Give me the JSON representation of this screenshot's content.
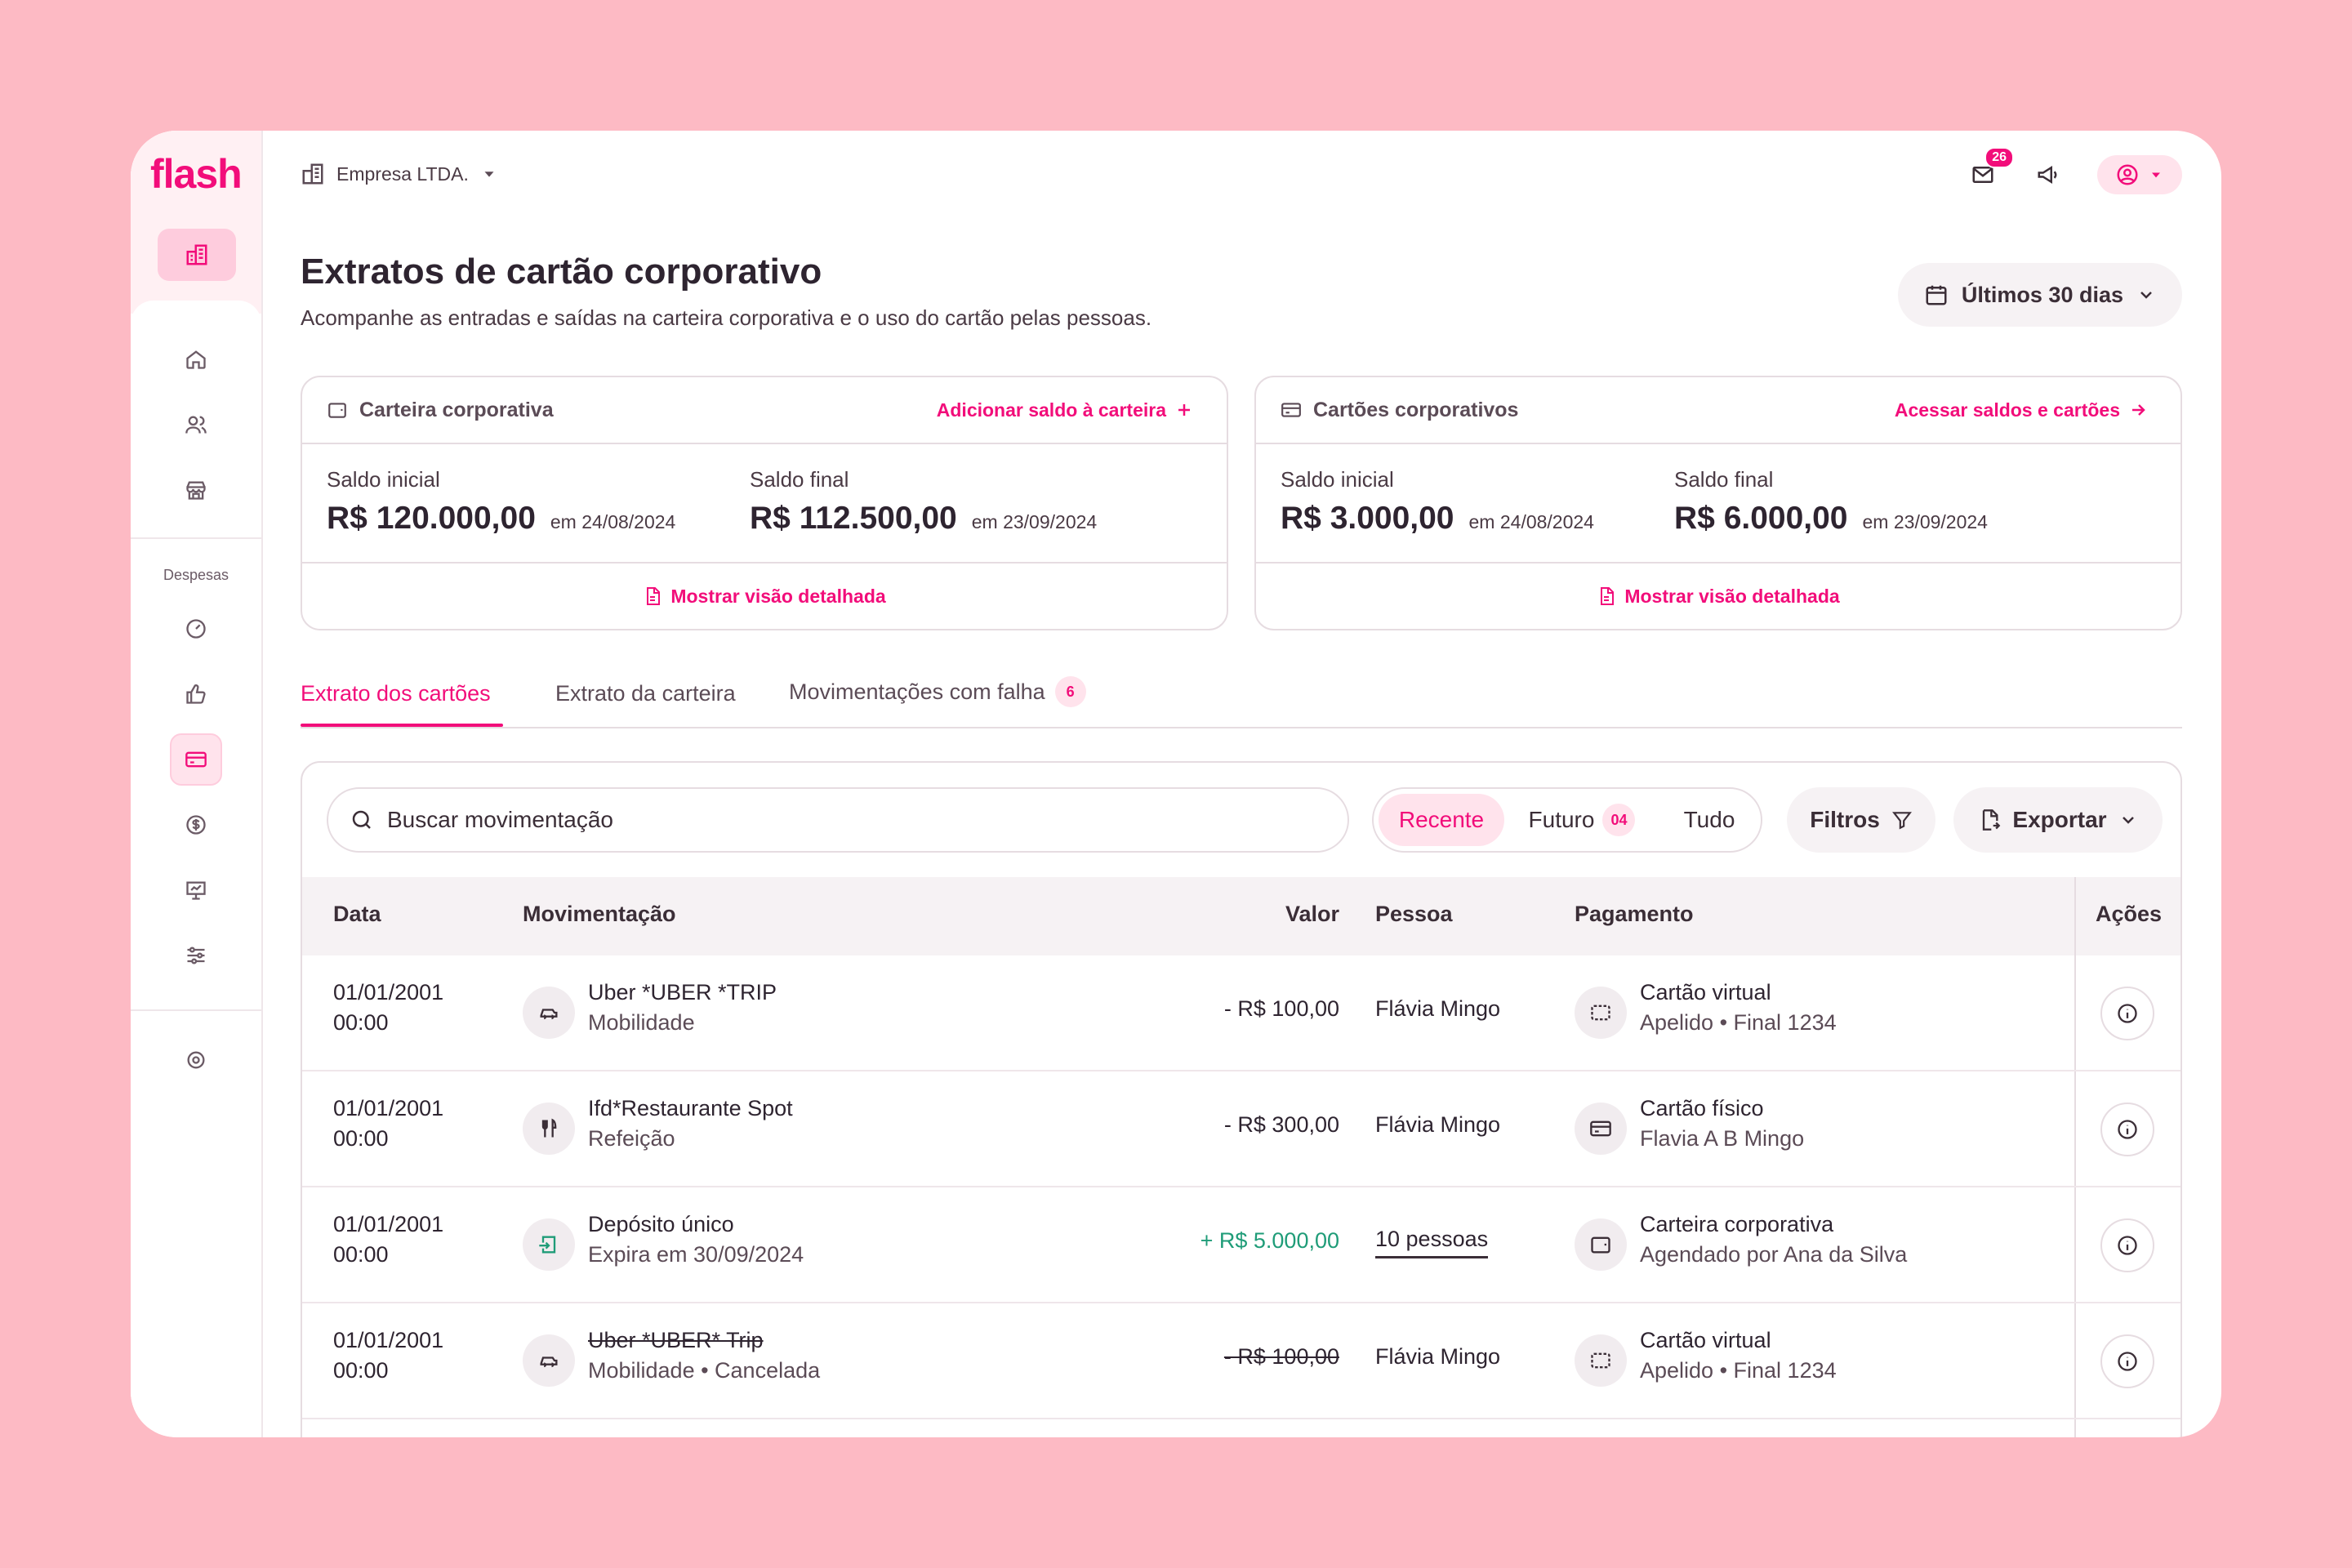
{
  "app": {
    "logo": "flash",
    "company": "Empresa LTDA."
  },
  "header": {
    "mail_count": "26"
  },
  "sidebar": {
    "section_label": "Despesas"
  },
  "page": {
    "title": "Extratos de cartão corporativo",
    "subtitle": "Acompanhe as entradas e saídas na carteira corporativa e o uso do cartão pelas pessoas.",
    "date_filter": "Últimos 30 dias"
  },
  "cards": [
    {
      "title": "Carteira corporativa",
      "action": "Adicionar saldo à carteira",
      "initial_label": "Saldo inicial",
      "initial_value": "R$ 120.000,00",
      "initial_date": "em 24/08/2024",
      "final_label": "Saldo final",
      "final_value": "R$ 112.500,00",
      "final_date": "em 23/09/2024",
      "footer": "Mostrar visão detalhada"
    },
    {
      "title": "Cartões corporativos",
      "action": "Acessar saldos e cartões",
      "initial_label": "Saldo inicial",
      "initial_value": "R$ 3.000,00",
      "initial_date": "em 24/08/2024",
      "final_label": "Saldo final",
      "final_value": "R$ 6.000,00",
      "final_date": "em 23/09/2024",
      "footer": "Mostrar visão detalhada"
    }
  ],
  "tabs": [
    {
      "label": "Extrato dos cartões"
    },
    {
      "label": "Extrato da carteira"
    },
    {
      "label": "Movimentações com falha",
      "badge": "6"
    }
  ],
  "toolbar": {
    "search_placeholder": "Buscar movimentação",
    "segments": [
      {
        "label": "Recente"
      },
      {
        "label": "Futuro",
        "badge": "04"
      },
      {
        "label": "Tudo"
      }
    ],
    "filters_label": "Filtros",
    "export_label": "Exportar"
  },
  "table": {
    "columns": [
      "Data",
      "Movimentação",
      "Valor",
      "Pessoa",
      "Pagamento",
      "Ações"
    ],
    "rows": [
      {
        "date": "01/01/2001",
        "time": "00:00",
        "title": "Uber *UBER *TRIP",
        "subtitle": "Mobilidade",
        "icon": "car-icon",
        "value": "- R$ 100,00",
        "person": "Flávia Mingo",
        "pay_title": "Cartão virtual",
        "pay_sub": "Apelido • Final 1234",
        "pay_icon": "virtual-card-icon"
      },
      {
        "date": "01/01/2001",
        "time": "00:00",
        "title": "Ifd*Restaurante Spot",
        "subtitle": "Refeição",
        "icon": "cutlery-icon",
        "value": "- R$ 300,00",
        "person": "Flávia Mingo",
        "pay_title": "Cartão físico",
        "pay_sub": "Flavia A B Mingo",
        "pay_icon": "card-icon"
      },
      {
        "date": "01/01/2001",
        "time": "00:00",
        "title": "Depósito único",
        "subtitle": "Expira em 30/09/2024",
        "icon": "deposit-icon",
        "value": "+ R$ 5.000,00",
        "person": "10 pessoas",
        "pay_title": "Carteira corporativa",
        "pay_sub": "Agendado por Ana da Silva",
        "pay_icon": "wallet-icon"
      },
      {
        "date": "01/01/2001",
        "time": "00:00",
        "title": "Uber *UBER* Trip",
        "subtitle": "Mobilidade • Cancelada",
        "icon": "car-icon",
        "value": "- R$ 100,00",
        "person": "Flávia Mingo",
        "pay_title": "Cartão virtual",
        "pay_sub": "Apelido • Final 1234",
        "pay_icon": "virtual-card-icon"
      }
    ]
  },
  "colors": {
    "brand": "#F20D7A",
    "positive": "#1F9C78",
    "background": "#FDBAC4"
  }
}
